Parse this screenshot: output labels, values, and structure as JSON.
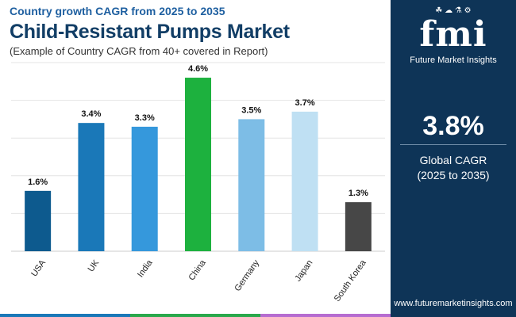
{
  "header": {
    "subtitle": "Country growth CAGR from 2025 to 2035",
    "title": "Child-Resistant Pumps Market",
    "note": "(Example of Country CAGR from 40+ covered in Report)"
  },
  "chart_data": {
    "type": "bar",
    "categories": [
      "USA",
      "UK",
      "India",
      "China",
      "Germany",
      "Japan",
      "South Korea"
    ],
    "values": [
      1.6,
      3.4,
      3.3,
      4.6,
      3.5,
      3.7,
      1.3
    ],
    "labels": [
      "1.6%",
      "3.4%",
      "3.3%",
      "4.6%",
      "3.5%",
      "3.7%",
      "1.3%"
    ],
    "colors": [
      "#0d5a8e",
      "#1a78b8",
      "#3598dc",
      "#1db13e",
      "#7dbde6",
      "#bfe0f3",
      "#474747"
    ],
    "ylim": [
      0,
      5
    ],
    "grid": true
  },
  "sidebar": {
    "logo_mark": "fmi",
    "logo_icons": "☘ ☁ ⚗ ⚙",
    "logo_text": "Future Market Insights",
    "kpi_value": "3.8%",
    "kpi_label_line1": "Global CAGR",
    "kpi_label_line2": "(2025 to 2035)",
    "website": "www.futuremarketinsights.com"
  },
  "bottom_bar_colors": [
    "#1a78b8",
    "#29a84b",
    "#b66cd0"
  ]
}
